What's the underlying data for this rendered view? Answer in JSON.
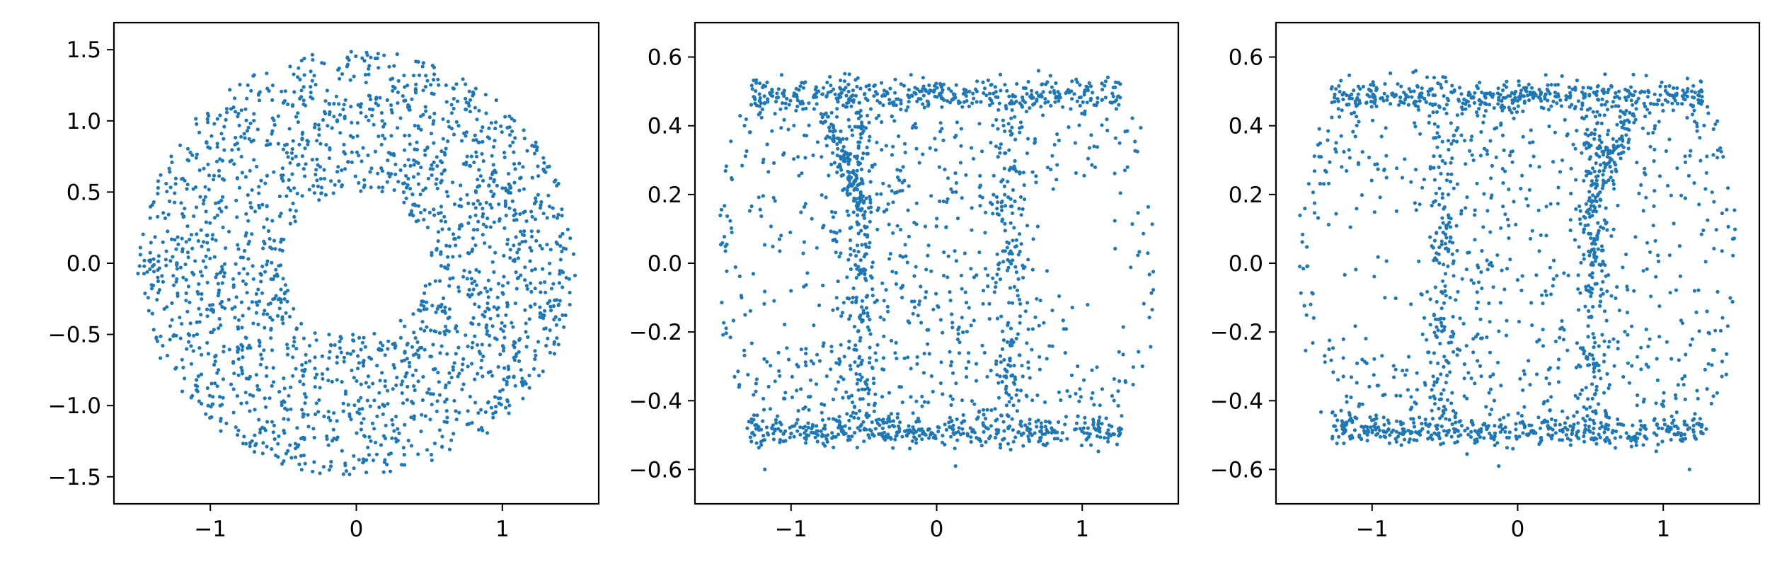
{
  "figure": {
    "background": "#ffffff",
    "point_color": "#1f77b4"
  },
  "chart_data": [
    {
      "type": "scatter",
      "title": "",
      "xlabel": "",
      "ylabel": "",
      "xlim": [
        -1.66,
        1.66
      ],
      "ylim": [
        -1.69,
        1.69
      ],
      "xticks": [
        -1,
        0,
        1
      ],
      "xtick_labels": [
        "−1",
        "0",
        "1"
      ],
      "yticks": [
        -1.5,
        -1.0,
        -0.5,
        0.0,
        0.5,
        1.0,
        1.5
      ],
      "ytick_labels": [
        "−1.5",
        "−1.0",
        "−0.5",
        "0.0",
        "0.5",
        "1.0",
        "1.5"
      ],
      "grid": false,
      "legend": "none",
      "point_count_approx": 2000,
      "description": "uniform annulus",
      "shape": {
        "kind": "annulus",
        "inner_radius": 0.5,
        "outer_radius": 1.5
      }
    },
    {
      "type": "scatter",
      "title": "",
      "xlabel": "",
      "ylabel": "",
      "xlim": [
        -1.66,
        1.66
      ],
      "ylim": [
        -0.7,
        0.7
      ],
      "xticks": [
        -1,
        0,
        1
      ],
      "xtick_labels": [
        "−1",
        "0",
        "1"
      ],
      "yticks": [
        -0.6,
        -0.4,
        -0.2,
        0.0,
        0.2,
        0.4,
        0.6
      ],
      "ytick_labels": [
        "−0.6",
        "−0.4",
        "−0.2",
        "0.0",
        "0.2",
        "0.4",
        "0.6"
      ],
      "grid": false,
      "legend": "none",
      "point_count_approx": 2000,
      "description": "annulus unrolled into a band with bulging vertical sides; denser ridges along y = ±0.5 and along x ≈ −0.5 and x ≈ 0.5 with a diagonal ridge from (−0.75, 0.45) to (−0.5, 0.2); sparse regions around (−1.05, 0.0) and (1.05, 0.0)",
      "shape": {
        "kind": "band",
        "y_range": [
          -0.5,
          0.5
        ],
        "x_half_width": 1.5
      }
    },
    {
      "type": "scatter",
      "title": "",
      "xlabel": "",
      "ylabel": "",
      "xlim": [
        -1.66,
        1.66
      ],
      "ylim": [
        -0.7,
        0.7
      ],
      "xticks": [
        -1,
        0,
        1
      ],
      "xtick_labels": [
        "−1",
        "0",
        "1"
      ],
      "yticks": [
        -0.6,
        -0.4,
        -0.2,
        0.0,
        0.2,
        0.4,
        0.6
      ],
      "ytick_labels": [
        "−0.6",
        "−0.4",
        "−0.2",
        "0.0",
        "0.2",
        "0.4",
        "0.6"
      ],
      "grid": false,
      "legend": "none",
      "point_count_approx": 2000,
      "description": "band with bulging vertical sides, mirrored arrangement of the second panel; denser ridges along y = ±0.5 and near x ≈ −0.5 and x ≈ 0.5; sparse regions around (−0.95, 0.0) and (1.0, 0.0)",
      "shape": {
        "kind": "band",
        "y_range": [
          -0.5,
          0.5
        ],
        "x_half_width": 1.5
      }
    }
  ]
}
